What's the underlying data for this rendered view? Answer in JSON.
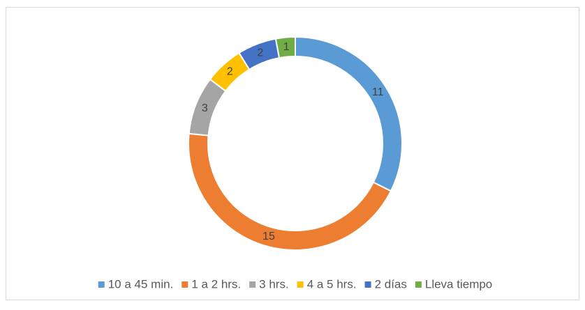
{
  "chart_data": {
    "type": "donut",
    "categories": [
      "10 a 45 min.",
      "1 a 2 hrs.",
      "3 hrs.",
      "4 a 5 hrs.",
      "2 días",
      "Lleva tiempo"
    ],
    "values": [
      11,
      15,
      3,
      2,
      2,
      1
    ],
    "colors": [
      "#5b9bd5",
      "#ed7d31",
      "#a5a5a5",
      "#ffc000",
      "#4472c4",
      "#70ad47"
    ],
    "legend": "bottom"
  }
}
